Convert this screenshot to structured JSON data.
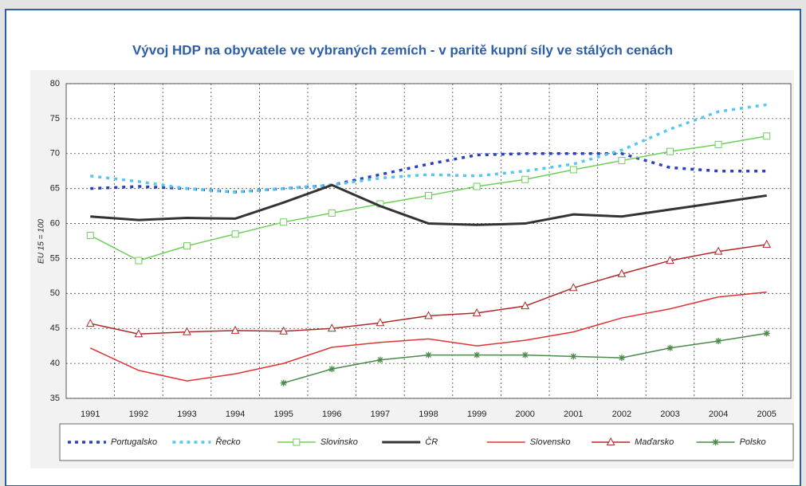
{
  "chart_data": {
    "type": "line",
    "title": "Vývoj HDP na obyvatele ve vybraných zemích - v paritě kupní síly ve stálých cenách",
    "y_label": "EU 15 = 100",
    "categories": [
      "1991",
      "1992",
      "1993",
      "1994",
      "1995",
      "1996",
      "1997",
      "1998",
      "1999",
      "2000",
      "2001",
      "2002",
      "2003",
      "2004",
      "2005"
    ],
    "ylim": [
      35,
      80
    ],
    "yticks": [
      35,
      40,
      45,
      50,
      55,
      60,
      65,
      70,
      75,
      80
    ],
    "grid": true,
    "legend": "bottom",
    "series": [
      {
        "name": "Portugalsko",
        "color": "#2b40c0",
        "dash": "dotted",
        "values": [
          65,
          65.3,
          65,
          64.5,
          65,
          65.5,
          67,
          68.5,
          69.8,
          70,
          70,
          70,
          68,
          67.5,
          67.5
        ]
      },
      {
        "name": "Řecko",
        "color": "#55c8ef",
        "dash": "dotted",
        "values": [
          66.8,
          66,
          65,
          64.5,
          65,
          65.5,
          66.5,
          67,
          66.8,
          67.5,
          68.5,
          70.5,
          73.5,
          76,
          77
        ]
      },
      {
        "name": "Slovinsko",
        "color": "#6ecf5a",
        "marker": "square",
        "values": [
          58.3,
          54.7,
          56.8,
          58.5,
          60.2,
          61.5,
          62.8,
          64,
          65.3,
          66.3,
          67.7,
          69,
          70.3,
          71.3,
          72.5
        ]
      },
      {
        "name": "ČR",
        "color": "#333333",
        "width": 3,
        "values": [
          61,
          60.5,
          60.8,
          60.7,
          63,
          65.5,
          62.5,
          60,
          59.8,
          60,
          61.3,
          61,
          62,
          63,
          64
        ]
      },
      {
        "name": "Slovensko",
        "color": "#e03333",
        "values": [
          42.2,
          39,
          37.5,
          38.5,
          40,
          42.3,
          43,
          43.5,
          42.5,
          43.3,
          44.5,
          46.5,
          47.8,
          49.5,
          50.2
        ]
      },
      {
        "name": "Maďarsko",
        "color": "#b02a2a",
        "marker": "triangle",
        "values": [
          45.7,
          44.2,
          44.5,
          44.7,
          44.6,
          45,
          45.8,
          46.8,
          47.2,
          48.2,
          50.8,
          52.8,
          54.7,
          56,
          57
        ]
      },
      {
        "name": "Polsko",
        "color": "#4a8a4a",
        "marker": "star",
        "values": [
          null,
          null,
          null,
          null,
          37.2,
          39.2,
          40.5,
          41.2,
          41.2,
          41.2,
          41,
          40.8,
          42.2,
          43.2,
          44.3
        ]
      }
    ]
  }
}
